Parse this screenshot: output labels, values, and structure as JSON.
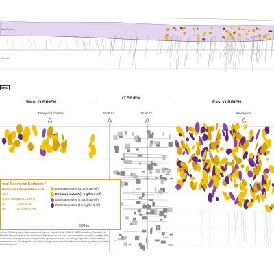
{
  "top": {
    "group_labels": [
      "dia Group",
      "Group"
    ]
  },
  "section_tag": "onal",
  "headers": {
    "west": "West O'BRIEN",
    "center": "O'BRIEN",
    "east": "East O'BRIEN"
  },
  "shafts": {
    "thompson": "Thompson Cadillac",
    "shaft3": "Shaft #3",
    "shaft2": "Shaft #2",
    "kewagama": "Kewagama"
  },
  "legend": {
    "title": "eral Resource Estimate ¹",
    "col_indicated": "Resource",
    "col_inferred": "Inferred Resource",
    "indicated_values": [
      "(01)",
      "(1,601,000 t)",
      "oz",
      "Au"
    ],
    "inferred_values": [
      "(1,601,000 t)",
      "446,000 oz",
      "at 8.66 g/t Au"
    ],
    "items": [
      {
        "label": "Estimate extent (3.0 g/t cut-off)",
        "color": "#f2c200",
        "bold": false
      },
      {
        "label": "Estimate extent (4.5 g/t cut-off)",
        "color": "#f2c200",
        "bold": true
      },
      {
        "label": "Estimate extent (7.5 g/t cut-off)",
        "color": "#9b59b6",
        "bold": false
      },
      {
        "label": "Estimate extent (10.0 g/t cut-off)",
        "color": "#5b2a86",
        "bold": false
      }
    ]
  },
  "scale": "500 m",
  "footnote": [
    "on the O'Brien project, Northwestern Québec. Report for NI 43-101. SLR Consulting (Canada) Ltd.",
    "Mineral Resources that are not Mineral Reserves do not have demonstrated economic viability. The",
    "neral resource may be materially affected by environmental, permitting, legal, title, socio-political,",
    "relevant issues including risks set forth in filings made with Canadian securities regulatory authorities",
    "www.sedar.com"
  ],
  "colors": {
    "gold": "#f2c200",
    "gold_dark": "#d9a400",
    "purple": "#8e44ad",
    "purple_dark": "#5b2a86",
    "lavender": "#d9c8ec",
    "grey": "#b0b0b0"
  }
}
